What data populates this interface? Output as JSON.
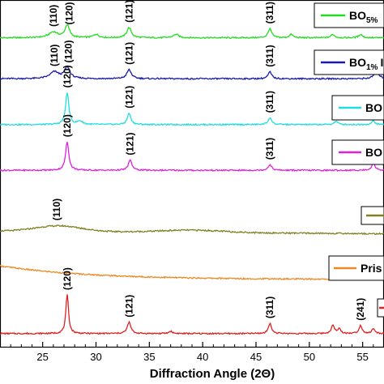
{
  "chart_data": {
    "type": "line",
    "xlabel": "Diffraction Angle (2Θ)",
    "xlim": [
      21,
      57
    ],
    "x_ticks": [
      25,
      30,
      35,
      40,
      45,
      50,
      55
    ],
    "stacked": true,
    "series": [
      {
        "name": "BO5%",
        "name_main": "BO",
        "name_sub": "5%",
        "name_suffix": "",
        "color": "#22dd22",
        "baseline": 0.12,
        "peaks": [
          {
            "x": 26.0,
            "h": 0.25,
            "w": 0.5
          },
          {
            "x": 27.3,
            "h": 0.55,
            "w": 0.25
          },
          {
            "x": 30.0,
            "h": 0.15,
            "w": 0.3
          },
          {
            "x": 33.1,
            "h": 0.45,
            "w": 0.25
          },
          {
            "x": 37.5,
            "h": 0.15,
            "w": 0.3
          },
          {
            "x": 46.3,
            "h": 0.4,
            "w": 0.2
          },
          {
            "x": 48.3,
            "h": 0.15,
            "w": 0.2
          },
          {
            "x": 52.2,
            "h": 0.15,
            "w": 0.2
          },
          {
            "x": 54.8,
            "h": 0.15,
            "w": 0.2
          }
        ],
        "labels": [
          {
            "text": "(110)",
            "x": 26.0
          },
          {
            "text": "(120)",
            "x": 27.5
          },
          {
            "text": "(121)",
            "x": 33.1
          },
          {
            "text": "(311)",
            "x": 46.3
          }
        ]
      },
      {
        "name": "BO1%",
        "name_main": "BO",
        "name_sub": "1%",
        "name_suffix": "I",
        "color": "#1a1aa6",
        "baseline": 0.1,
        "peaks": [
          {
            "x": 26.1,
            "h": 0.3,
            "w": 0.5
          },
          {
            "x": 27.3,
            "h": 0.5,
            "w": 0.3
          },
          {
            "x": 33.1,
            "h": 0.4,
            "w": 0.25
          },
          {
            "x": 46.3,
            "h": 0.3,
            "w": 0.2
          },
          {
            "x": 56.3,
            "h": 0.35,
            "w": 0.25
          }
        ],
        "labels": [
          {
            "text": "(110)",
            "x": 26.1
          },
          {
            "text": "(120)",
            "x": 27.4
          },
          {
            "text": "(121)",
            "x": 33.1
          },
          {
            "text": "(311)",
            "x": 46.3
          }
        ]
      },
      {
        "name": "BO",
        "name_main": "BO",
        "name_sub": "",
        "name_suffix": "",
        "color": "#22dddd",
        "baseline": 0.15,
        "peaks": [
          {
            "x": 27.3,
            "h": 1.4,
            "w": 0.18
          },
          {
            "x": 28.5,
            "h": 0.15,
            "w": 0.3
          },
          {
            "x": 33.1,
            "h": 0.5,
            "w": 0.2
          },
          {
            "x": 46.3,
            "h": 0.3,
            "w": 0.2
          },
          {
            "x": 52.5,
            "h": 0.15,
            "w": 0.2
          },
          {
            "x": 56.0,
            "h": 0.15,
            "w": 0.2
          }
        ],
        "labels": [
          {
            "text": "(120)",
            "x": 27.3
          },
          {
            "text": "(121)",
            "x": 33.1
          },
          {
            "text": "(311)",
            "x": 46.3
          }
        ]
      },
      {
        "name": "BO",
        "name_main": "BO",
        "name_sub": "",
        "name_suffix": "",
        "color": "#dd22dd",
        "baseline": 0.1,
        "peaks": [
          {
            "x": 27.3,
            "h": 1.25,
            "w": 0.18
          },
          {
            "x": 33.2,
            "h": 0.45,
            "w": 0.2
          },
          {
            "x": 46.3,
            "h": 0.25,
            "w": 0.2
          },
          {
            "x": 56.0,
            "h": 0.3,
            "w": 0.2
          }
        ],
        "labels": [
          {
            "text": "(120)",
            "x": 27.3
          },
          {
            "text": "(121)",
            "x": 33.2
          },
          {
            "text": "(311)",
            "x": 46.3
          }
        ]
      },
      {
        "name": "",
        "name_main": "",
        "name_sub": "",
        "name_suffix": "",
        "color": "#808020",
        "baseline": 0.1,
        "hump": {
          "x": 26.5,
          "h": 0.25,
          "w": 3.0
        },
        "hump2": {
          "x": 39.0,
          "h": 0.1,
          "w": 4.0
        },
        "slope": -0.12,
        "peaks": [],
        "labels": [
          {
            "text": "(110)",
            "x": 26.3
          }
        ]
      },
      {
        "name": "Pris",
        "name_main": "Pris",
        "name_sub": "",
        "name_suffix": "",
        "color": "#ee8822",
        "baseline": 0.0,
        "decay": {
          "a": 0.6,
          "k": 0.12
        },
        "peaks": [],
        "labels": []
      },
      {
        "name": "",
        "name_main": "",
        "name_sub": "",
        "name_suffix": "",
        "color": "#dd2222",
        "baseline": 0.08,
        "peaks": [
          {
            "x": 27.3,
            "h": 1.7,
            "w": 0.15
          },
          {
            "x": 33.1,
            "h": 0.5,
            "w": 0.2
          },
          {
            "x": 37.0,
            "h": 0.1,
            "w": 0.2
          },
          {
            "x": 46.3,
            "h": 0.45,
            "w": 0.18
          },
          {
            "x": 52.2,
            "h": 0.35,
            "w": 0.18
          },
          {
            "x": 52.8,
            "h": 0.2,
            "w": 0.18
          },
          {
            "x": 54.8,
            "h": 0.35,
            "w": 0.18
          },
          {
            "x": 56.0,
            "h": 0.2,
            "w": 0.18
          }
        ],
        "labels": [
          {
            "text": "(120)",
            "x": 27.3
          },
          {
            "text": "(121)",
            "x": 33.1
          },
          {
            "text": "(311)",
            "x": 46.3
          },
          {
            "text": "(241)",
            "x": 54.8
          }
        ]
      }
    ]
  }
}
